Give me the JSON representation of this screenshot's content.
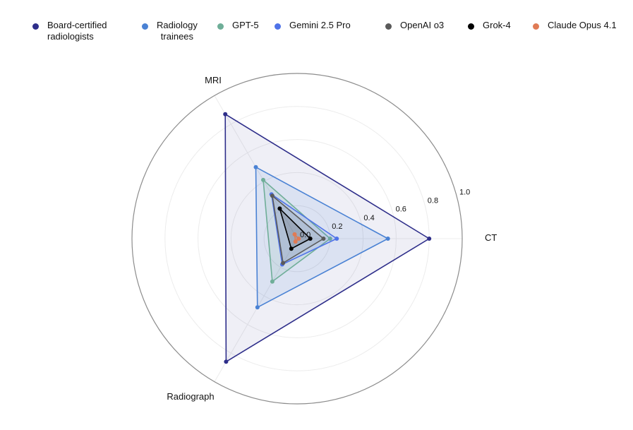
{
  "chart_data": {
    "type": "radar",
    "axes": [
      "CT",
      "MRI",
      "Radiograph"
    ],
    "radial_range": [
      0,
      1.0
    ],
    "radial_ticks": [
      "0.0",
      "0.2",
      "0.4",
      "0.6",
      "0.8",
      "1.0"
    ],
    "grid": true,
    "legend_position": "top",
    "series": [
      {
        "name": "Board-certified\nradiologists",
        "color": "#2e2e8a",
        "values": [
          0.8,
          0.87,
          0.86
        ]
      },
      {
        "name": "Radiology\ntrainees",
        "color": "#4a82d4",
        "values": [
          0.55,
          0.5,
          0.48
        ]
      },
      {
        "name": "GPT-5",
        "color": "#6fae98",
        "values": [
          0.2,
          0.41,
          0.3
        ]
      },
      {
        "name": "Gemini 2.5 Pro",
        "color": "#4f73e8",
        "values": [
          0.24,
          0.31,
          0.18
        ]
      },
      {
        "name": "OpenAI o3",
        "color": "#5a5a5a",
        "values": [
          0.16,
          0.3,
          0.17
        ]
      },
      {
        "name": "Grok-4",
        "color": "#000000",
        "values": [
          0.08,
          0.21,
          0.07
        ]
      },
      {
        "name": "Claude Opus 4.1",
        "color": "#e07b55",
        "values": [
          0.01,
          0.03,
          0.02
        ]
      }
    ]
  }
}
